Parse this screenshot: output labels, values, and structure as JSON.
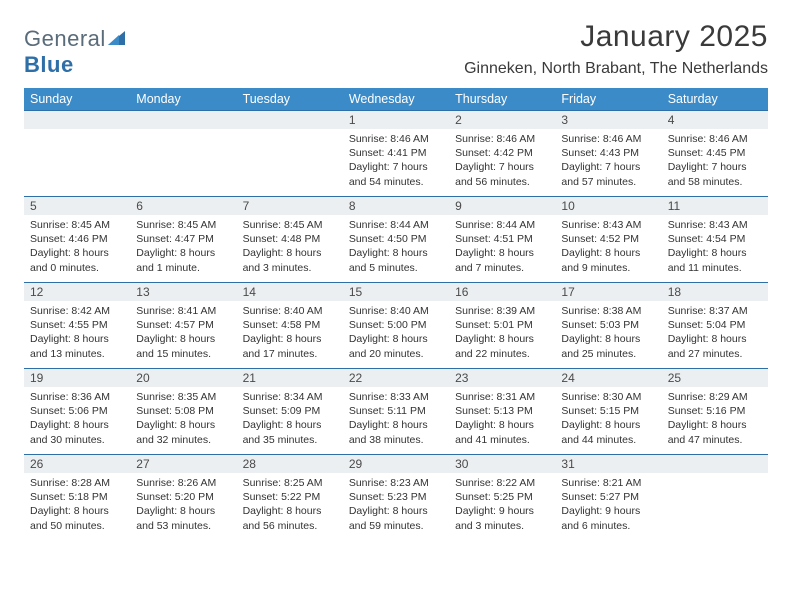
{
  "brand": {
    "name_part1": "General",
    "name_part2": "Blue"
  },
  "title": "January 2025",
  "location": "Ginneken, North Brabant, The Netherlands",
  "colors": {
    "header_bg": "#3b8bc9",
    "header_text": "#ffffff",
    "daynum_bg": "#eceff1",
    "daynum_border": "#2f6fa8",
    "body_text": "#333333",
    "logo_gray": "#5a6b7a",
    "logo_blue": "#2f6fa8"
  },
  "weekdays": [
    "Sunday",
    "Monday",
    "Tuesday",
    "Wednesday",
    "Thursday",
    "Friday",
    "Saturday"
  ],
  "weeks": [
    [
      null,
      null,
      null,
      {
        "n": "1",
        "sr": "Sunrise: 8:46 AM",
        "ss": "Sunset: 4:41 PM",
        "d1": "Daylight: 7 hours",
        "d2": "and 54 minutes."
      },
      {
        "n": "2",
        "sr": "Sunrise: 8:46 AM",
        "ss": "Sunset: 4:42 PM",
        "d1": "Daylight: 7 hours",
        "d2": "and 56 minutes."
      },
      {
        "n": "3",
        "sr": "Sunrise: 8:46 AM",
        "ss": "Sunset: 4:43 PM",
        "d1": "Daylight: 7 hours",
        "d2": "and 57 minutes."
      },
      {
        "n": "4",
        "sr": "Sunrise: 8:46 AM",
        "ss": "Sunset: 4:45 PM",
        "d1": "Daylight: 7 hours",
        "d2": "and 58 minutes."
      }
    ],
    [
      {
        "n": "5",
        "sr": "Sunrise: 8:45 AM",
        "ss": "Sunset: 4:46 PM",
        "d1": "Daylight: 8 hours",
        "d2": "and 0 minutes."
      },
      {
        "n": "6",
        "sr": "Sunrise: 8:45 AM",
        "ss": "Sunset: 4:47 PM",
        "d1": "Daylight: 8 hours",
        "d2": "and 1 minute."
      },
      {
        "n": "7",
        "sr": "Sunrise: 8:45 AM",
        "ss": "Sunset: 4:48 PM",
        "d1": "Daylight: 8 hours",
        "d2": "and 3 minutes."
      },
      {
        "n": "8",
        "sr": "Sunrise: 8:44 AM",
        "ss": "Sunset: 4:50 PM",
        "d1": "Daylight: 8 hours",
        "d2": "and 5 minutes."
      },
      {
        "n": "9",
        "sr": "Sunrise: 8:44 AM",
        "ss": "Sunset: 4:51 PM",
        "d1": "Daylight: 8 hours",
        "d2": "and 7 minutes."
      },
      {
        "n": "10",
        "sr": "Sunrise: 8:43 AM",
        "ss": "Sunset: 4:52 PM",
        "d1": "Daylight: 8 hours",
        "d2": "and 9 minutes."
      },
      {
        "n": "11",
        "sr": "Sunrise: 8:43 AM",
        "ss": "Sunset: 4:54 PM",
        "d1": "Daylight: 8 hours",
        "d2": "and 11 minutes."
      }
    ],
    [
      {
        "n": "12",
        "sr": "Sunrise: 8:42 AM",
        "ss": "Sunset: 4:55 PM",
        "d1": "Daylight: 8 hours",
        "d2": "and 13 minutes."
      },
      {
        "n": "13",
        "sr": "Sunrise: 8:41 AM",
        "ss": "Sunset: 4:57 PM",
        "d1": "Daylight: 8 hours",
        "d2": "and 15 minutes."
      },
      {
        "n": "14",
        "sr": "Sunrise: 8:40 AM",
        "ss": "Sunset: 4:58 PM",
        "d1": "Daylight: 8 hours",
        "d2": "and 17 minutes."
      },
      {
        "n": "15",
        "sr": "Sunrise: 8:40 AM",
        "ss": "Sunset: 5:00 PM",
        "d1": "Daylight: 8 hours",
        "d2": "and 20 minutes."
      },
      {
        "n": "16",
        "sr": "Sunrise: 8:39 AM",
        "ss": "Sunset: 5:01 PM",
        "d1": "Daylight: 8 hours",
        "d2": "and 22 minutes."
      },
      {
        "n": "17",
        "sr": "Sunrise: 8:38 AM",
        "ss": "Sunset: 5:03 PM",
        "d1": "Daylight: 8 hours",
        "d2": "and 25 minutes."
      },
      {
        "n": "18",
        "sr": "Sunrise: 8:37 AM",
        "ss": "Sunset: 5:04 PM",
        "d1": "Daylight: 8 hours",
        "d2": "and 27 minutes."
      }
    ],
    [
      {
        "n": "19",
        "sr": "Sunrise: 8:36 AM",
        "ss": "Sunset: 5:06 PM",
        "d1": "Daylight: 8 hours",
        "d2": "and 30 minutes."
      },
      {
        "n": "20",
        "sr": "Sunrise: 8:35 AM",
        "ss": "Sunset: 5:08 PM",
        "d1": "Daylight: 8 hours",
        "d2": "and 32 minutes."
      },
      {
        "n": "21",
        "sr": "Sunrise: 8:34 AM",
        "ss": "Sunset: 5:09 PM",
        "d1": "Daylight: 8 hours",
        "d2": "and 35 minutes."
      },
      {
        "n": "22",
        "sr": "Sunrise: 8:33 AM",
        "ss": "Sunset: 5:11 PM",
        "d1": "Daylight: 8 hours",
        "d2": "and 38 minutes."
      },
      {
        "n": "23",
        "sr": "Sunrise: 8:31 AM",
        "ss": "Sunset: 5:13 PM",
        "d1": "Daylight: 8 hours",
        "d2": "and 41 minutes."
      },
      {
        "n": "24",
        "sr": "Sunrise: 8:30 AM",
        "ss": "Sunset: 5:15 PM",
        "d1": "Daylight: 8 hours",
        "d2": "and 44 minutes."
      },
      {
        "n": "25",
        "sr": "Sunrise: 8:29 AM",
        "ss": "Sunset: 5:16 PM",
        "d1": "Daylight: 8 hours",
        "d2": "and 47 minutes."
      }
    ],
    [
      {
        "n": "26",
        "sr": "Sunrise: 8:28 AM",
        "ss": "Sunset: 5:18 PM",
        "d1": "Daylight: 8 hours",
        "d2": "and 50 minutes."
      },
      {
        "n": "27",
        "sr": "Sunrise: 8:26 AM",
        "ss": "Sunset: 5:20 PM",
        "d1": "Daylight: 8 hours",
        "d2": "and 53 minutes."
      },
      {
        "n": "28",
        "sr": "Sunrise: 8:25 AM",
        "ss": "Sunset: 5:22 PM",
        "d1": "Daylight: 8 hours",
        "d2": "and 56 minutes."
      },
      {
        "n": "29",
        "sr": "Sunrise: 8:23 AM",
        "ss": "Sunset: 5:23 PM",
        "d1": "Daylight: 8 hours",
        "d2": "and 59 minutes."
      },
      {
        "n": "30",
        "sr": "Sunrise: 8:22 AM",
        "ss": "Sunset: 5:25 PM",
        "d1": "Daylight: 9 hours",
        "d2": "and 3 minutes."
      },
      {
        "n": "31",
        "sr": "Sunrise: 8:21 AM",
        "ss": "Sunset: 5:27 PM",
        "d1": "Daylight: 9 hours",
        "d2": "and 6 minutes."
      },
      null
    ]
  ]
}
